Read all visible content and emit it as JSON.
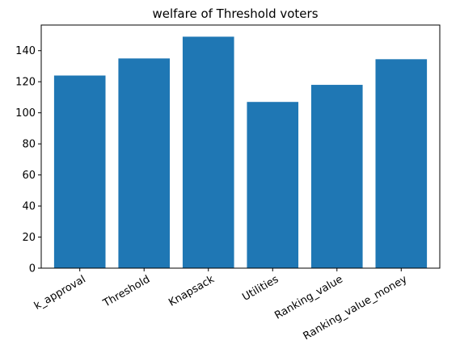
{
  "chart_data": {
    "type": "bar",
    "title": "welfare of Threshold voters",
    "xlabel": "",
    "ylabel": "",
    "categories": [
      "k_approval",
      "Threshold",
      "Knapsack",
      "Utilities",
      "Ranking_value",
      "Ranking_value_money"
    ],
    "values": [
      124,
      135,
      149,
      107,
      118,
      134.5
    ],
    "ylim": [
      0,
      156.5
    ],
    "yticks": [
      0,
      20,
      40,
      60,
      80,
      100,
      120,
      140
    ],
    "ytick_labels": [
      "0",
      "20",
      "40",
      "60",
      "80",
      "100",
      "120",
      "140"
    ],
    "bar_color": "#1f77b4",
    "grid": false,
    "xtick_rotation": "30"
  }
}
